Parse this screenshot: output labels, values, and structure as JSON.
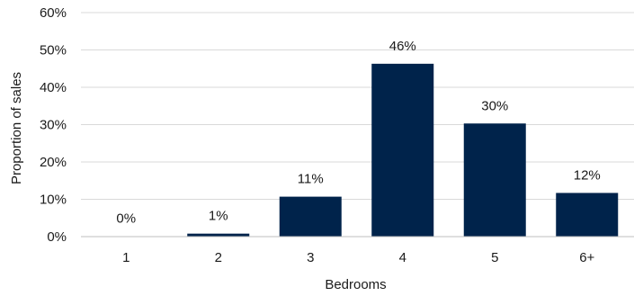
{
  "chart_data": {
    "type": "bar",
    "title": "",
    "xlabel": "Bedrooms",
    "ylabel": "Proportion of sales",
    "categories": [
      "1",
      "2",
      "3",
      "4",
      "5",
      "6+"
    ],
    "values": [
      0,
      1,
      11,
      46,
      30,
      12
    ],
    "bar_values": [
      0.1,
      0.8,
      10.7,
      46.3,
      30.3,
      11.7
    ],
    "data_labels": [
      "0%",
      "1%",
      "11%",
      "46%",
      "30%",
      "12%"
    ],
    "ylim": [
      0,
      60
    ],
    "yticks": [
      "0%",
      "10%",
      "20%",
      "30%",
      "40%",
      "50%",
      "60%"
    ],
    "grid": true,
    "legend": "none",
    "bar_color": "#00234b"
  }
}
